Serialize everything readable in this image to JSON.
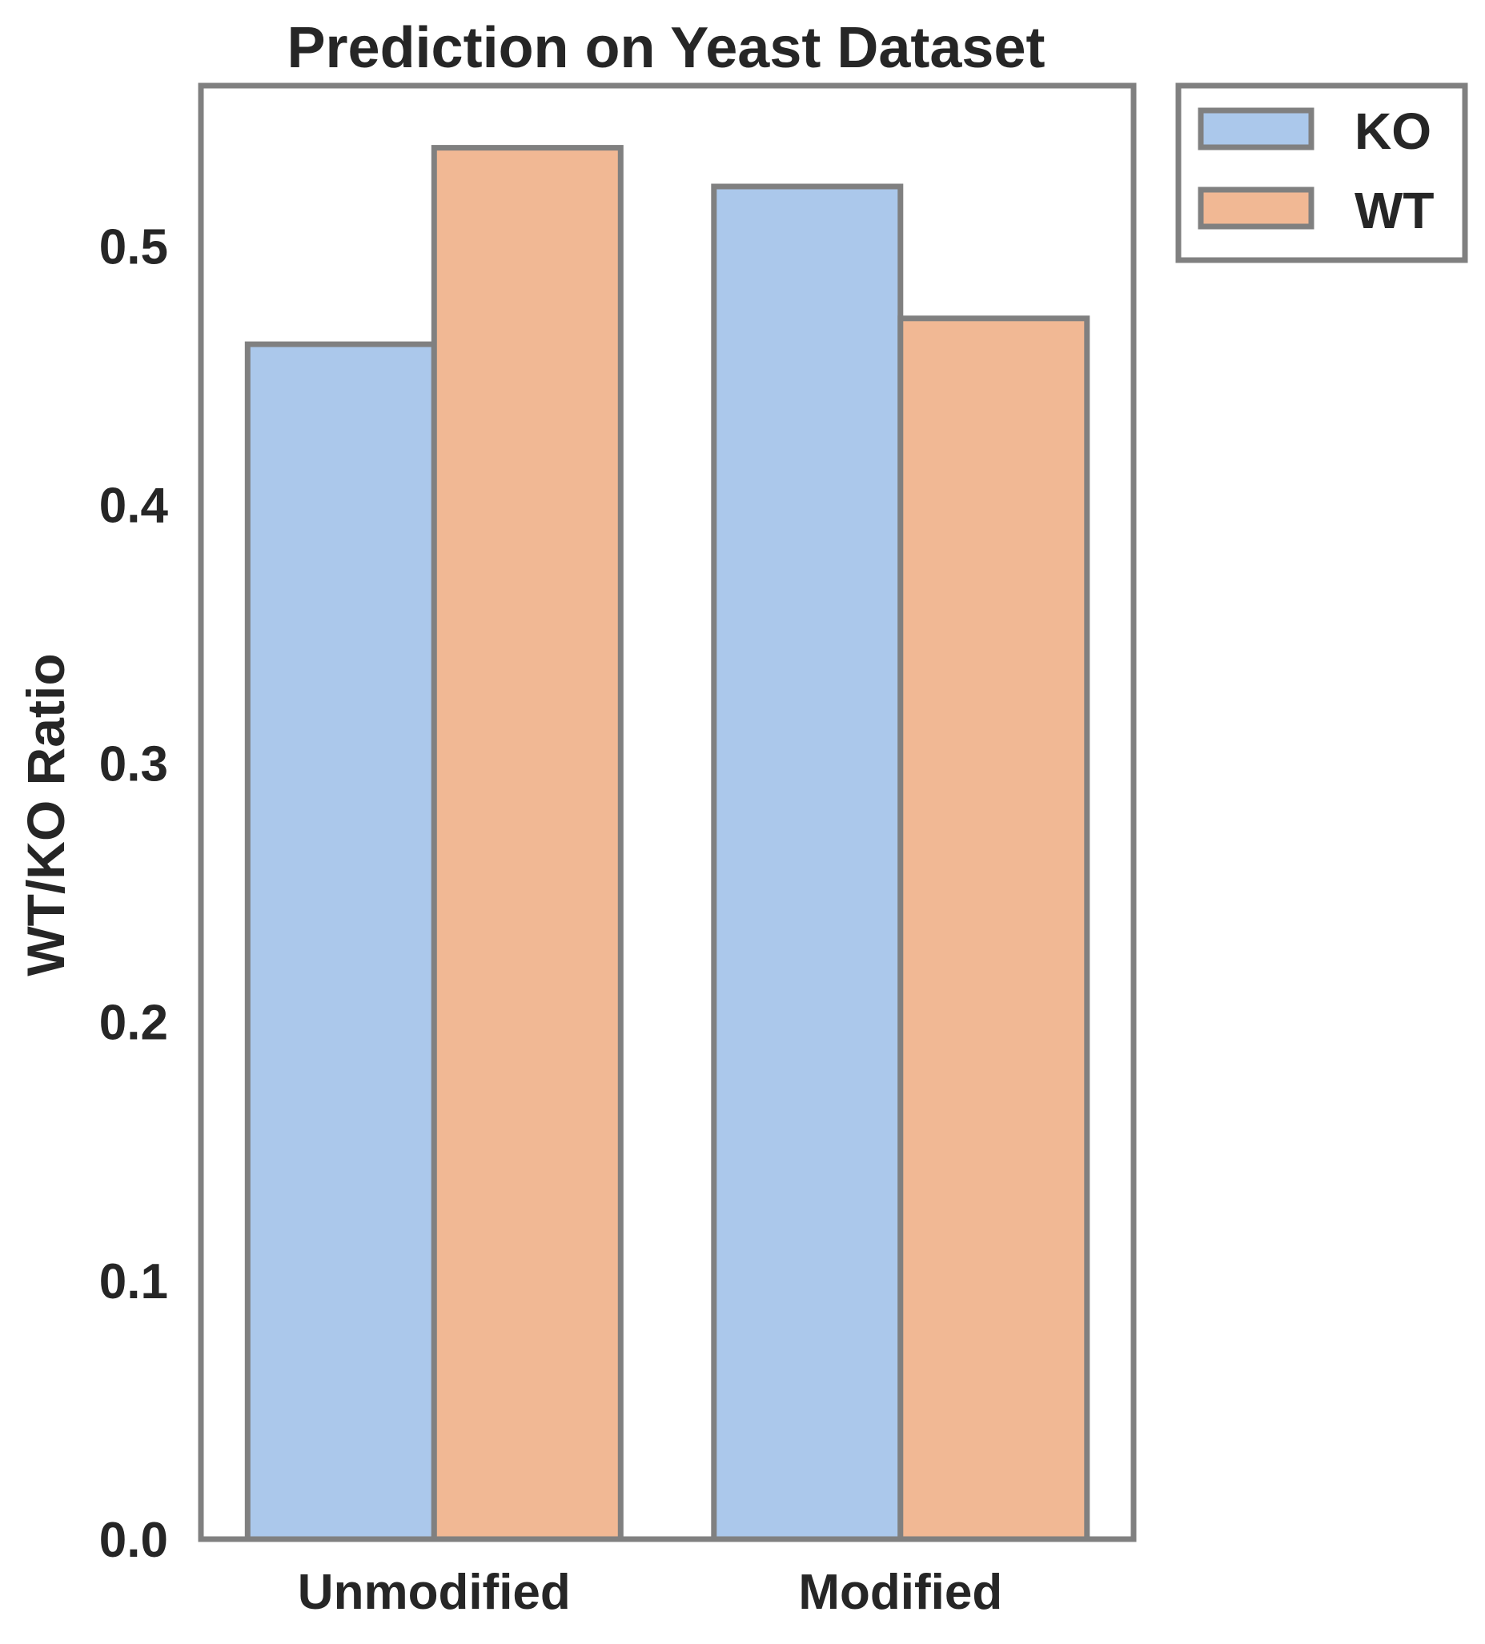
{
  "chart_data": {
    "type": "bar",
    "title": "Prediction on Yeast Dataset",
    "xlabel": "",
    "ylabel": "WT/KO Ratio",
    "categories": [
      "Unmodified",
      "Modified"
    ],
    "series": [
      {
        "name": "KO",
        "values": [
          0.462,
          0.523
        ],
        "color": "#abc8eb"
      },
      {
        "name": "WT",
        "values": [
          0.538,
          0.472
        ],
        "color": "#f1b894"
      }
    ],
    "ylim": [
      0,
      0.562
    ],
    "yticks": [
      "0.0",
      "0.1",
      "0.2",
      "0.3",
      "0.4",
      "0.5"
    ],
    "grid": false,
    "legend_position": "outside-top-right",
    "edge_color": "#808080"
  }
}
